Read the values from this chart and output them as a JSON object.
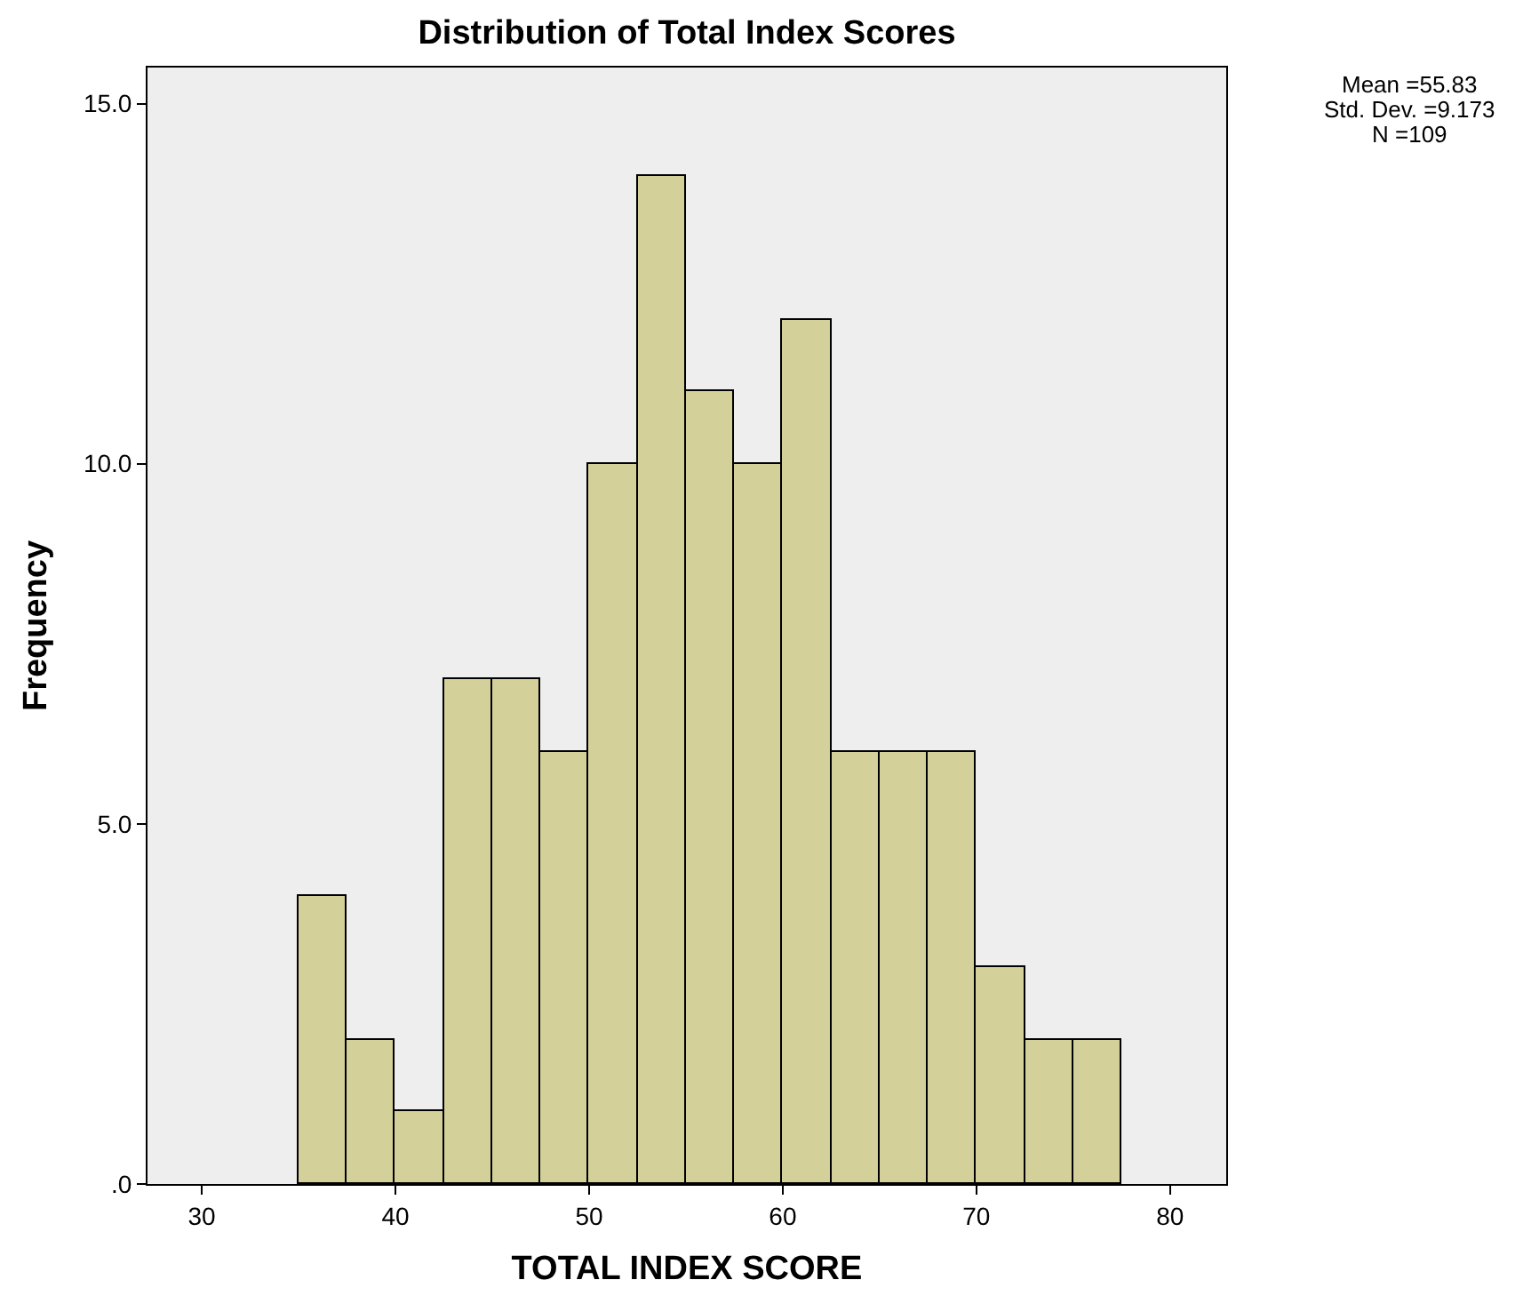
{
  "chart_data": {
    "type": "histogram",
    "title": "Distribution of Total Index Scores",
    "xlabel": "TOTAL INDEX SCORE",
    "ylabel": "Frequency",
    "bins": [
      35,
      37.5,
      40,
      42.5,
      45,
      47.5,
      50,
      52.5,
      55,
      57.5,
      60,
      62.5,
      65,
      67.5,
      70,
      72.5,
      75,
      77.5
    ],
    "values": [
      4,
      2,
      1,
      7,
      7,
      6,
      10,
      14,
      11,
      10,
      12,
      6,
      6,
      6,
      3,
      2,
      2
    ],
    "color": "#d4d09a",
    "xlim": [
      27.2,
      82.9
    ],
    "xticks": [
      30,
      40,
      50,
      60,
      70,
      80
    ],
    "ylim": [
      0,
      15.5
    ],
    "yticks": [
      {
        "value": 0,
        "label": ".0"
      },
      {
        "value": 5,
        "label": "5.0"
      },
      {
        "value": 10,
        "label": "10.0"
      },
      {
        "value": 15,
        "label": "15.0"
      }
    ],
    "grid": false,
    "annotations": [
      "Mean =55.83",
      "Std. Dev. =9.173",
      "N =109"
    ]
  }
}
